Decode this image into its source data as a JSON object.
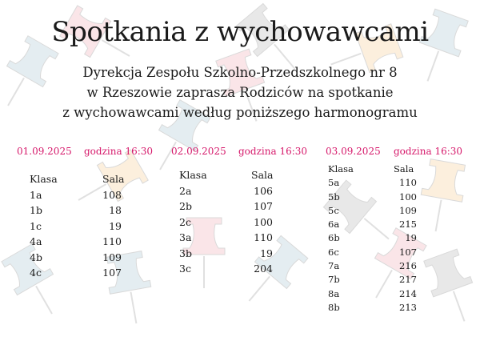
{
  "title": "Spotkania z wychowawcami",
  "subtitle": [
    "Dyrekcja Zespołu Szkolno-Przedszkolnego nr 8",
    "w Rzeszowie zaprasza Rodziców na spotkanie",
    "z wychowawcami według poniższego harmonogramu"
  ],
  "accent_color": "#d6196b",
  "schedule": [
    {
      "date": "01.09.2025",
      "time": "godzina 16:30",
      "class_header": "Klasa",
      "room_header": "Sala",
      "classes": [
        "1a",
        "1b",
        "1c",
        "4a",
        "4b",
        "4c"
      ],
      "rooms": [
        "108",
        "18",
        "19",
        "110",
        "109",
        "107"
      ]
    },
    {
      "date": "02.09.2025",
      "time": "godzina 16:30",
      "class_header": "Klasa",
      "room_header": "Sala",
      "classes": [
        "2a",
        "2b",
        "2c",
        "3a",
        "3b",
        "3c"
      ],
      "rooms": [
        "106",
        "107",
        "100",
        "110",
        "19",
        "204"
      ]
    },
    {
      "date": "03.09.2025",
      "time": "godzina 16:30",
      "class_header": "Klasa",
      "room_header": "Sala",
      "classes": [
        "5a",
        "5b",
        "5c",
        "6a",
        "6b",
        "6c",
        "7a",
        "7b",
        "8a",
        "8b"
      ],
      "rooms": [
        "110",
        "100",
        "109",
        "215",
        "19",
        "107",
        "216",
        "217",
        "214",
        "213"
      ]
    }
  ],
  "background_icon": "pushpin-icon"
}
